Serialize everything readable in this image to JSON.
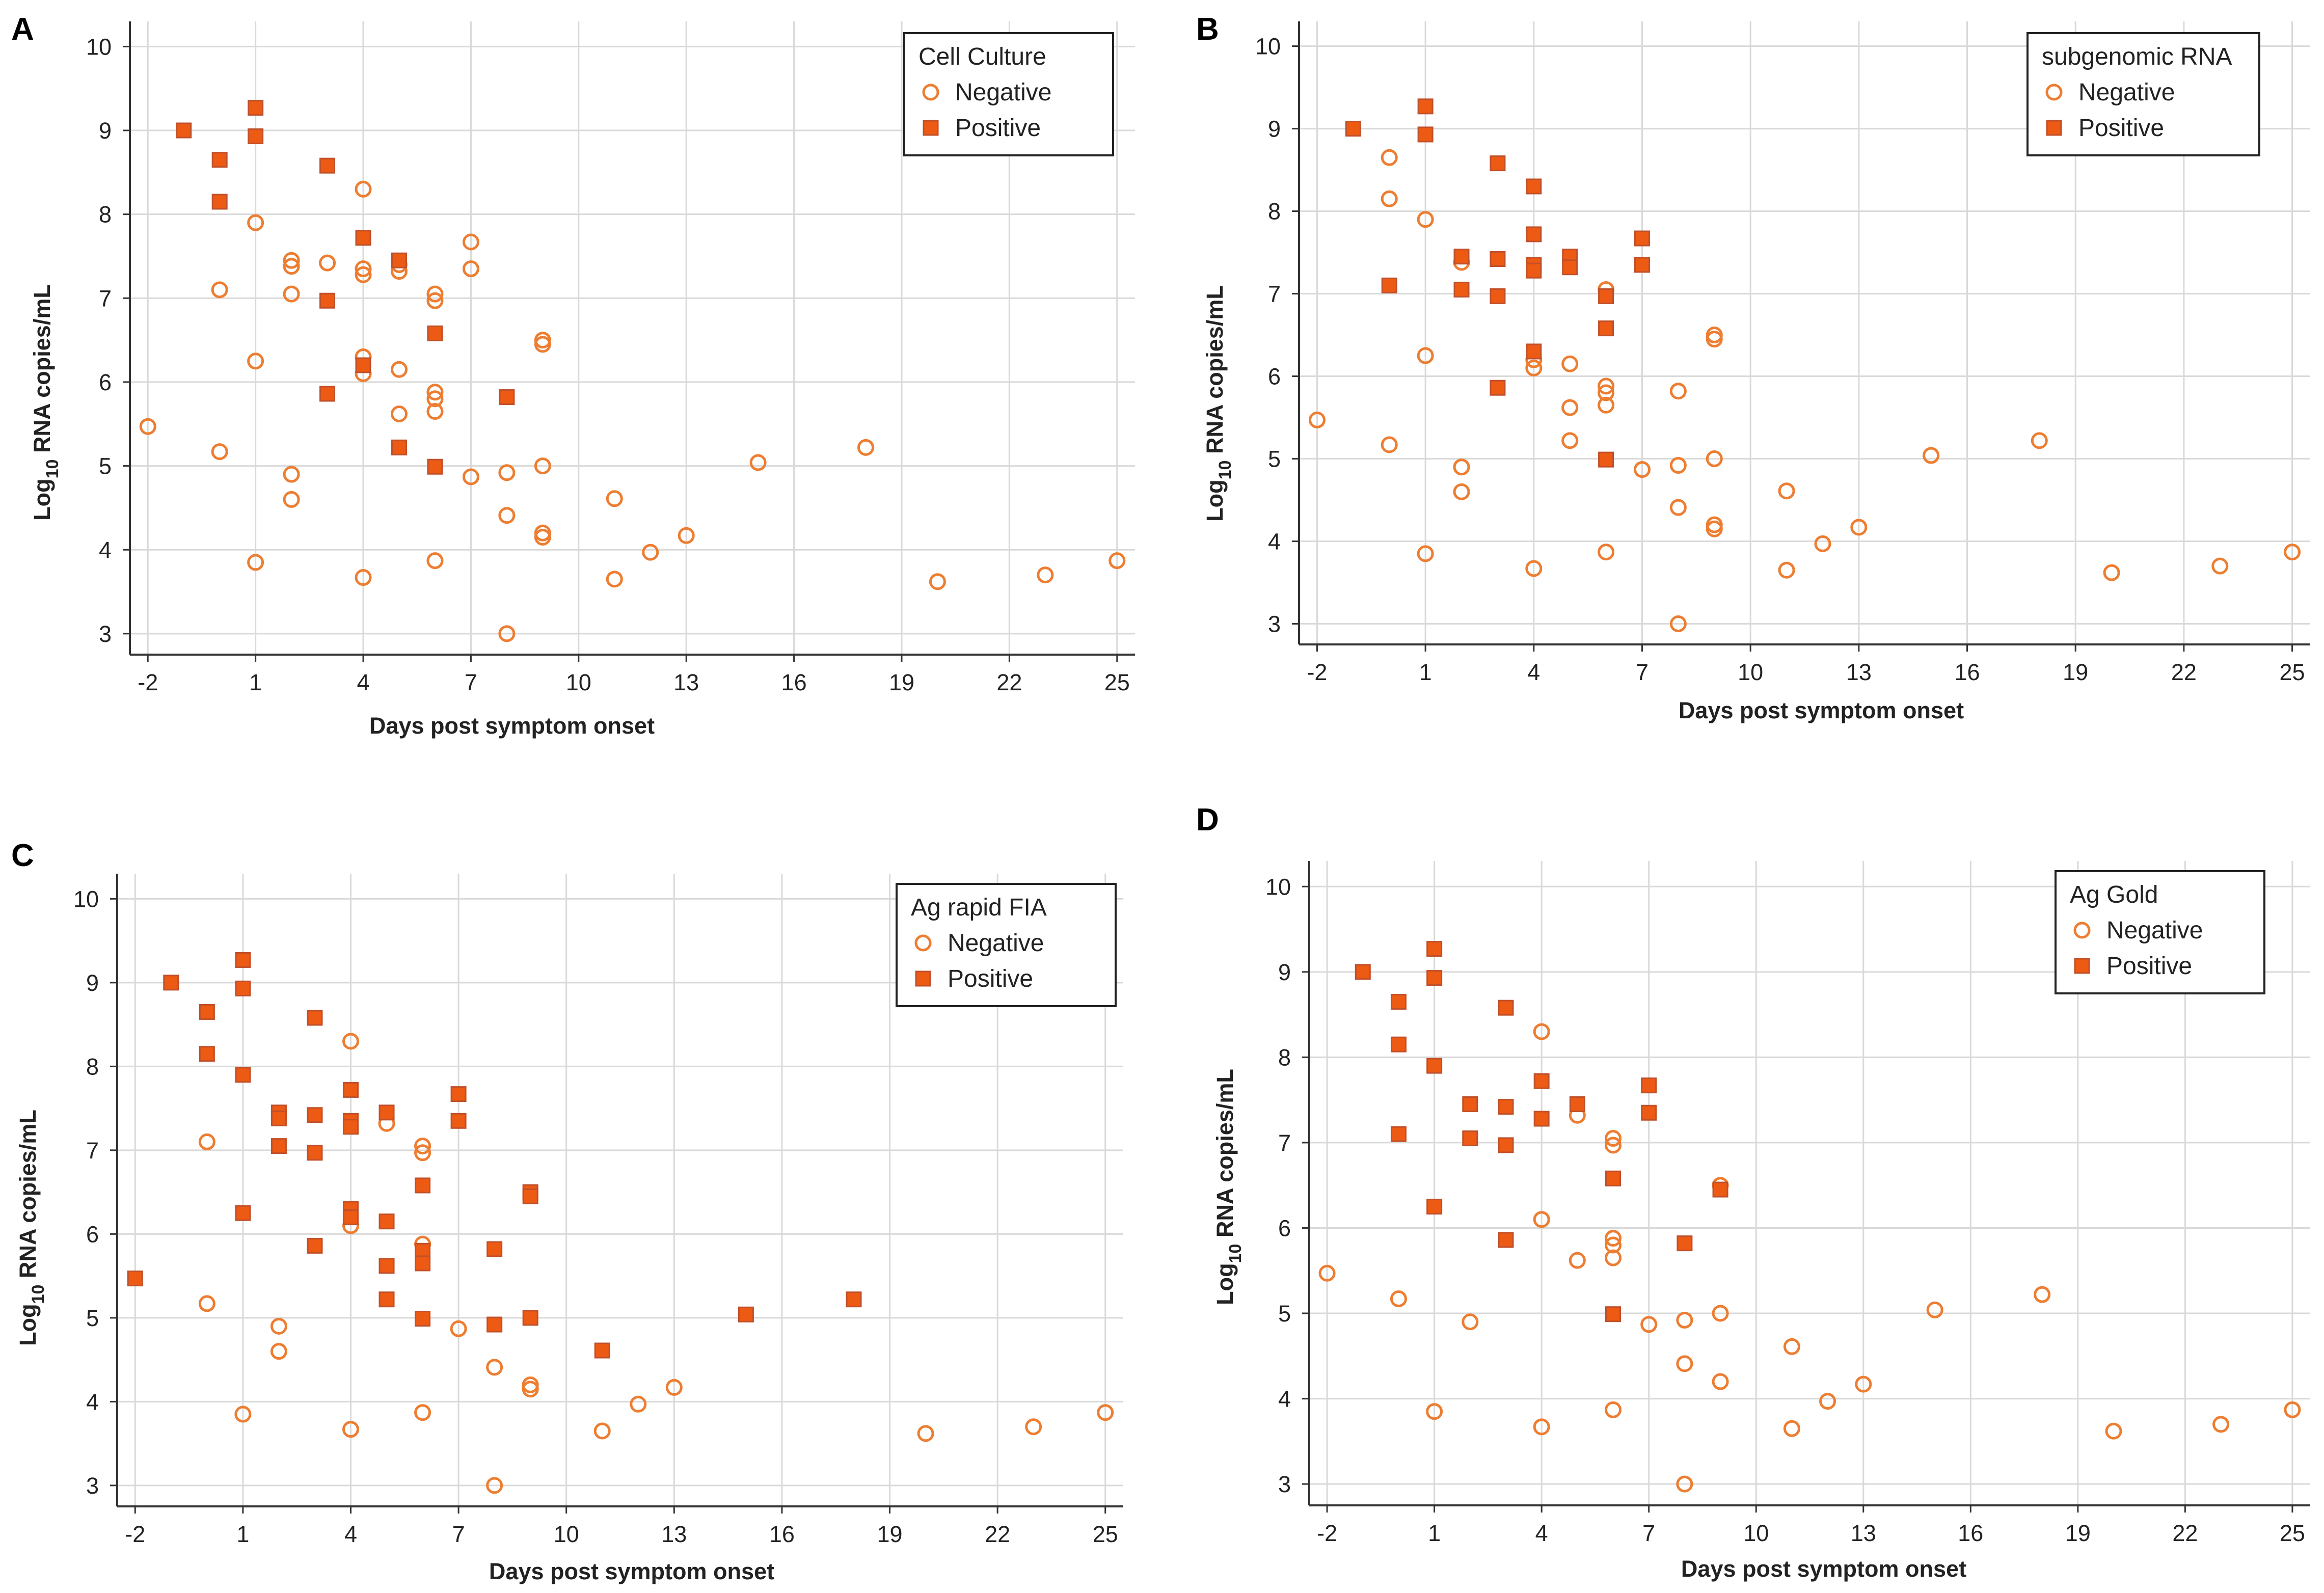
{
  "colors": {
    "negative": "#ed7d31",
    "positive_fill": "#ed5a14",
    "positive_stroke": "#c0502a",
    "grid": "#d9d9d9",
    "axis": "#333333"
  },
  "chart_data": [
    {
      "type": "scatter",
      "panel": "A",
      "legend_title": "Cell Culture",
      "xlabel": "Days post symptom onset",
      "ylabel": "Log10 RNA copies/mL",
      "xlim": [
        -2.5,
        25.5
      ],
      "ylim": [
        2.75,
        10.3
      ],
      "xticks": [
        -2,
        1,
        4,
        7,
        10,
        13,
        16,
        19,
        22,
        25
      ],
      "yticks": [
        3,
        4,
        5,
        6,
        7,
        8,
        9,
        10
      ],
      "series": [
        {
          "name": "Negative",
          "marker": "circle",
          "points": [
            [
              -2,
              5.47
            ],
            [
              0,
              7.1
            ],
            [
              0,
              5.17
            ],
            [
              1,
              7.9
            ],
            [
              1,
              6.25
            ],
            [
              1,
              3.85
            ],
            [
              2,
              7.45
            ],
            [
              2,
              7.38
            ],
            [
              2,
              7.05
            ],
            [
              2,
              4.9
            ],
            [
              2,
              4.6
            ],
            [
              3,
              7.42
            ],
            [
              4,
              8.3
            ],
            [
              4,
              7.35
            ],
            [
              4,
              7.28
            ],
            [
              4,
              6.3
            ],
            [
              4,
              6.1
            ],
            [
              4,
              3.67
            ],
            [
              5,
              7.4
            ],
            [
              5,
              7.32
            ],
            [
              5,
              6.15
            ],
            [
              5,
              5.62
            ],
            [
              6,
              7.05
            ],
            [
              6,
              6.97
            ],
            [
              6,
              5.88
            ],
            [
              6,
              5.8
            ],
            [
              6,
              5.65
            ],
            [
              6,
              3.87
            ],
            [
              7,
              7.67
            ],
            [
              7,
              7.35
            ],
            [
              7,
              4.87
            ],
            [
              8,
              4.92
            ],
            [
              8,
              4.41
            ],
            [
              8,
              3.0
            ],
            [
              9,
              6.5
            ],
            [
              9,
              6.45
            ],
            [
              9,
              5.0
            ],
            [
              9,
              4.2
            ],
            [
              9,
              4.15
            ],
            [
              11,
              4.61
            ],
            [
              11,
              3.65
            ],
            [
              12,
              3.97
            ],
            [
              13,
              4.17
            ],
            [
              15,
              5.04
            ],
            [
              18,
              5.22
            ],
            [
              20,
              3.62
            ],
            [
              23,
              3.7
            ],
            [
              25,
              3.87
            ]
          ]
        },
        {
          "name": "Positive",
          "marker": "square",
          "points": [
            [
              -1,
              9.0
            ],
            [
              0,
              8.65
            ],
            [
              0,
              8.15
            ],
            [
              1,
              9.27
            ],
            [
              1,
              8.93
            ],
            [
              3,
              8.58
            ],
            [
              3,
              6.97
            ],
            [
              3,
              5.86
            ],
            [
              4,
              7.72
            ],
            [
              4,
              6.2
            ],
            [
              5,
              7.45
            ],
            [
              5,
              5.22
            ],
            [
              6,
              6.58
            ],
            [
              6,
              4.99
            ],
            [
              8,
              5.82
            ]
          ]
        }
      ]
    },
    {
      "type": "scatter",
      "panel": "B",
      "legend_title": "subgenomic RNA",
      "xlabel": "Days post symptom onset",
      "ylabel": "Log10 RNA copies/mL",
      "xlim": [
        -2.5,
        25.5
      ],
      "ylim": [
        2.75,
        10.3
      ],
      "xticks": [
        -2,
        1,
        4,
        7,
        10,
        13,
        16,
        19,
        22,
        25
      ],
      "yticks": [
        3,
        4,
        5,
        6,
        7,
        8,
        9,
        10
      ],
      "series": [
        {
          "name": "Negative",
          "marker": "circle",
          "points": [
            [
              -2,
              5.47
            ],
            [
              0,
              8.65
            ],
            [
              0,
              8.15
            ],
            [
              0,
              5.17
            ],
            [
              1,
              7.9
            ],
            [
              1,
              6.25
            ],
            [
              1,
              3.85
            ],
            [
              2,
              7.38
            ],
            [
              2,
              4.9
            ],
            [
              2,
              4.6
            ],
            [
              4,
              6.2
            ],
            [
              4,
              6.1
            ],
            [
              4,
              3.67
            ],
            [
              5,
              6.15
            ],
            [
              5,
              5.62
            ],
            [
              5,
              5.22
            ],
            [
              6,
              7.05
            ],
            [
              6,
              5.88
            ],
            [
              6,
              5.8
            ],
            [
              6,
              5.65
            ],
            [
              6,
              3.87
            ],
            [
              7,
              4.87
            ],
            [
              8,
              5.82
            ],
            [
              8,
              4.92
            ],
            [
              8,
              4.41
            ],
            [
              8,
              3.0
            ],
            [
              9,
              6.5
            ],
            [
              9,
              6.45
            ],
            [
              9,
              5.0
            ],
            [
              9,
              4.2
            ],
            [
              9,
              4.15
            ],
            [
              11,
              4.61
            ],
            [
              11,
              3.65
            ],
            [
              12,
              3.97
            ],
            [
              13,
              4.17
            ],
            [
              15,
              5.04
            ],
            [
              18,
              5.22
            ],
            [
              20,
              3.62
            ],
            [
              23,
              3.7
            ],
            [
              25,
              3.87
            ]
          ]
        },
        {
          "name": "Positive",
          "marker": "square",
          "points": [
            [
              -1,
              9.0
            ],
            [
              0,
              7.1
            ],
            [
              1,
              9.27
            ],
            [
              1,
              8.93
            ],
            [
              2,
              7.45
            ],
            [
              2,
              7.05
            ],
            [
              3,
              8.58
            ],
            [
              3,
              7.42
            ],
            [
              3,
              6.97
            ],
            [
              3,
              5.86
            ],
            [
              4,
              8.3
            ],
            [
              4,
              7.72
            ],
            [
              4,
              7.35
            ],
            [
              4,
              7.28
            ],
            [
              4,
              6.3
            ],
            [
              5,
              7.45
            ],
            [
              5,
              7.32
            ],
            [
              6,
              6.97
            ],
            [
              6,
              6.58
            ],
            [
              6,
              4.99
            ],
            [
              7,
              7.67
            ],
            [
              7,
              7.35
            ]
          ]
        }
      ]
    },
    {
      "type": "scatter",
      "panel": "C",
      "legend_title": "Ag rapid FIA",
      "xlabel": "Days post symptom onset",
      "ylabel": "Log10 RNA copies/mL",
      "xlim": [
        -2.5,
        25.5
      ],
      "ylim": [
        2.75,
        10.3
      ],
      "xticks": [
        -2,
        1,
        4,
        7,
        10,
        13,
        16,
        19,
        22,
        25
      ],
      "yticks": [
        3,
        4,
        5,
        6,
        7,
        8,
        9,
        10
      ],
      "series": [
        {
          "name": "Negative",
          "marker": "circle",
          "points": [
            [
              0,
              7.1
            ],
            [
              0,
              5.17
            ],
            [
              1,
              3.85
            ],
            [
              2,
              4.9
            ],
            [
              2,
              4.6
            ],
            [
              4,
              8.3
            ],
            [
              4,
              6.1
            ],
            [
              4,
              3.67
            ],
            [
              5,
              7.32
            ],
            [
              6,
              7.05
            ],
            [
              6,
              6.97
            ],
            [
              6,
              5.88
            ],
            [
              6,
              3.87
            ],
            [
              7,
              4.87
            ],
            [
              8,
              4.41
            ],
            [
              8,
              3.0
            ],
            [
              9,
              4.2
            ],
            [
              9,
              4.15
            ],
            [
              11,
              3.65
            ],
            [
              12,
              3.97
            ],
            [
              13,
              4.17
            ],
            [
              20,
              3.62
            ],
            [
              23,
              3.7
            ],
            [
              25,
              3.87
            ]
          ]
        },
        {
          "name": "Positive",
          "marker": "square",
          "points": [
            [
              -2,
              5.47
            ],
            [
              -1,
              9.0
            ],
            [
              0,
              8.65
            ],
            [
              0,
              8.15
            ],
            [
              1,
              9.27
            ],
            [
              1,
              8.93
            ],
            [
              1,
              7.9
            ],
            [
              1,
              6.25
            ],
            [
              2,
              7.45
            ],
            [
              2,
              7.38
            ],
            [
              2,
              7.05
            ],
            [
              3,
              8.58
            ],
            [
              3,
              7.42
            ],
            [
              3,
              6.97
            ],
            [
              3,
              5.86
            ],
            [
              4,
              7.72
            ],
            [
              4,
              7.35
            ],
            [
              4,
              7.28
            ],
            [
              4,
              6.3
            ],
            [
              4,
              6.2
            ],
            [
              5,
              7.45
            ],
            [
              5,
              6.15
            ],
            [
              5,
              5.62
            ],
            [
              5,
              5.22
            ],
            [
              6,
              6.58
            ],
            [
              6,
              5.8
            ],
            [
              6,
              5.65
            ],
            [
              6,
              4.99
            ],
            [
              7,
              7.67
            ],
            [
              7,
              7.35
            ],
            [
              8,
              5.82
            ],
            [
              8,
              4.92
            ],
            [
              9,
              6.5
            ],
            [
              9,
              6.45
            ],
            [
              9,
              5.0
            ],
            [
              11,
              4.61
            ],
            [
              15,
              5.04
            ],
            [
              18,
              5.22
            ]
          ]
        }
      ]
    },
    {
      "type": "scatter",
      "panel": "D",
      "legend_title": "Ag Gold",
      "xlabel": "Days post symptom onset",
      "ylabel": "Log10 RNA copies/mL",
      "xlim": [
        -2.5,
        25.5
      ],
      "ylim": [
        2.75,
        10.3
      ],
      "xticks": [
        -2,
        1,
        4,
        7,
        10,
        13,
        16,
        19,
        22,
        25
      ],
      "yticks": [
        3,
        4,
        5,
        6,
        7,
        8,
        9,
        10
      ],
      "series": [
        {
          "name": "Negative",
          "marker": "circle",
          "points": [
            [
              -2,
              5.47
            ],
            [
              0,
              5.17
            ],
            [
              1,
              3.85
            ],
            [
              2,
              4.9
            ],
            [
              4,
              8.3
            ],
            [
              4,
              6.1
            ],
            [
              4,
              3.67
            ],
            [
              5,
              7.32
            ],
            [
              5,
              5.62
            ],
            [
              6,
              7.05
            ],
            [
              6,
              6.97
            ],
            [
              6,
              5.88
            ],
            [
              6,
              5.8
            ],
            [
              6,
              5.65
            ],
            [
              6,
              3.87
            ],
            [
              7,
              4.87
            ],
            [
              8,
              4.92
            ],
            [
              8,
              4.41
            ],
            [
              8,
              3.0
            ],
            [
              9,
              6.5
            ],
            [
              9,
              5.0
            ],
            [
              9,
              4.2
            ],
            [
              11,
              4.61
            ],
            [
              11,
              3.65
            ],
            [
              12,
              3.97
            ],
            [
              13,
              4.17
            ],
            [
              15,
              5.04
            ],
            [
              18,
              5.22
            ],
            [
              20,
              3.62
            ],
            [
              23,
              3.7
            ],
            [
              25,
              3.87
            ]
          ]
        },
        {
          "name": "Positive",
          "marker": "square",
          "points": [
            [
              -1,
              9.0
            ],
            [
              0,
              8.65
            ],
            [
              0,
              8.15
            ],
            [
              0,
              7.1
            ],
            [
              1,
              9.27
            ],
            [
              1,
              8.93
            ],
            [
              1,
              7.9
            ],
            [
              1,
              6.25
            ],
            [
              2,
              7.45
            ],
            [
              2,
              7.05
            ],
            [
              3,
              8.58
            ],
            [
              3,
              7.42
            ],
            [
              3,
              6.97
            ],
            [
              3,
              5.86
            ],
            [
              4,
              7.72
            ],
            [
              4,
              7.28
            ],
            [
              5,
              7.45
            ],
            [
              6,
              6.58
            ],
            [
              6,
              4.99
            ],
            [
              7,
              7.67
            ],
            [
              7,
              7.35
            ],
            [
              8,
              5.82
            ],
            [
              9,
              6.45
            ]
          ]
        }
      ]
    }
  ]
}
